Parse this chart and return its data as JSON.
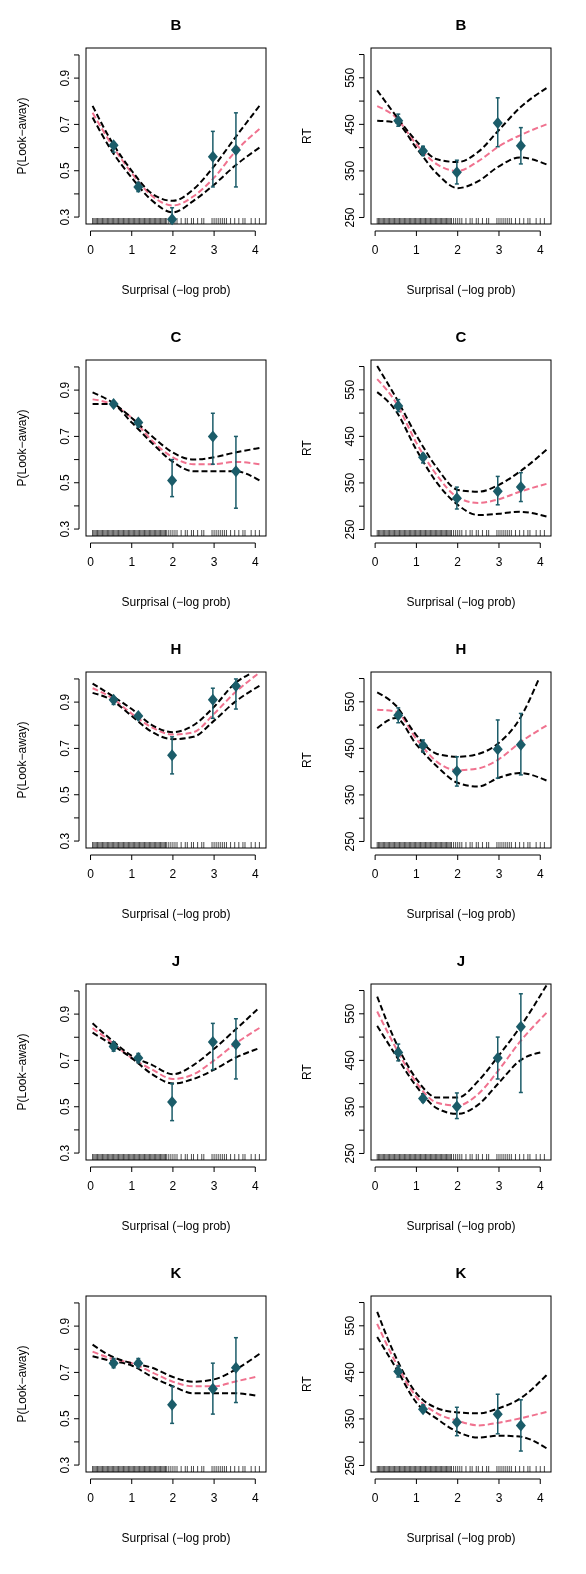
{
  "chart_data": [
    {
      "type": "line",
      "title": "B",
      "xlabel": "Surprisal (−log prob)",
      "ylabel": "P(Look−away)",
      "xlim": [
        -0.11,
        4.26
      ],
      "ylim": [
        0.27,
        1.03
      ],
      "xticks": [
        0,
        1,
        2,
        3,
        4
      ],
      "yticks": [
        0.3,
        {
          "value": 0.4,
          "label": null
        },
        0.5,
        {
          "value": 0.6,
          "label": null
        },
        0.7,
        {
          "value": 0.8,
          "label": null
        },
        0.9,
        {
          "value": 1.0,
          "label": null
        }
      ],
      "series": [
        {
          "color": "#f0728f",
          "line_style": "dashed",
          "x": [
            0.05,
            0.56,
            1,
            1.5,
            2,
            2.5,
            3,
            3.5,
            4.1
          ],
          "values": [
            0.75,
            0.6,
            0.49,
            0.39,
            0.35,
            0.39,
            0.47,
            0.58,
            0.68
          ]
        },
        {
          "color": "#000000",
          "line_style": "dashed",
          "x": [
            0.05,
            0.5,
            1,
            1.5,
            2,
            2.5,
            3,
            3.5,
            4.1
          ],
          "values": [
            0.78,
            0.63,
            0.5,
            0.4,
            0.37,
            0.42,
            0.52,
            0.64,
            0.78
          ]
        },
        {
          "color": "#000000",
          "line_style": "dashed",
          "x": [
            0.05,
            0.5,
            1,
            1.5,
            2,
            2.5,
            3,
            3.5,
            4.1
          ],
          "values": [
            0.73,
            0.59,
            0.47,
            0.37,
            0.32,
            0.37,
            0.44,
            0.52,
            0.6
          ]
        },
        {
          "type": "scatter",
          "color": "#1b5c69",
          "marker": "diamond",
          "x": [
            0.56,
            1.16,
            1.98,
            2.97,
            3.53
          ],
          "values": [
            0.61,
            0.43,
            0.29,
            0.56,
            0.59
          ],
          "errors": [
            [
              0.58,
              0.62
            ],
            [
              0.41,
              0.45
            ],
            [
              0.28,
              0.34
            ],
            [
              0.43,
              0.67
            ],
            [
              0.43,
              0.75
            ]
          ]
        }
      ]
    },
    {
      "type": "line",
      "title": "B",
      "xlabel": "Surprisal (−log prob)",
      "ylabel": "RT",
      "xlim": [
        -0.1,
        4.26
      ],
      "ylim": [
        236,
        614
      ],
      "xticks": [
        0,
        1,
        2,
        3,
        4
      ],
      "yticks": [
        250,
        {
          "value": 300,
          "label": null
        },
        350,
        {
          "value": 400,
          "label": null
        },
        450,
        {
          "value": 500,
          "label": null
        },
        550,
        {
          "value": 600,
          "label": null
        }
      ],
      "series": [
        {
          "color": "#f0728f",
          "line_style": "dashed",
          "x": [
            0.05,
            0.5,
            1,
            1.5,
            2,
            2.5,
            3,
            3.5,
            4.15
          ],
          "values": [
            489,
            465,
            407,
            364,
            350,
            371,
            403,
            426,
            450
          ]
        },
        {
          "color": "#000000",
          "line_style": "dashed",
          "x": [
            0.05,
            0.5,
            1,
            1.5,
            2,
            2.5,
            3,
            3.5,
            4.15
          ],
          "values": [
            523,
            469,
            414,
            375,
            369,
            391,
            438,
            485,
            528
          ]
        },
        {
          "color": "#000000",
          "line_style": "dashed",
          "x": [
            0.05,
            0.5,
            1,
            1.5,
            2,
            2.5,
            3,
            3.5,
            4.15
          ],
          "values": [
            458,
            454,
            399,
            344,
            313,
            328,
            360,
            379,
            364
          ]
        },
        {
          "type": "scatter",
          "color": "#1b5c69",
          "marker": "diamond",
          "x": [
            0.56,
            1.16,
            1.98,
            2.97,
            3.53
          ],
          "values": [
            458,
            393,
            347,
            453,
            404
          ],
          "errors": [
            [
              446,
              472
            ],
            [
              383,
              403
            ],
            [
              322,
              373
            ],
            [
              402,
              507
            ],
            [
              365,
              443
            ]
          ]
        }
      ]
    },
    {
      "type": "line",
      "title": "C",
      "xlabel": "Surprisal (−log prob)",
      "ylabel": "P(Look−away)",
      "xlim": [
        -0.11,
        4.26
      ],
      "ylim": [
        0.27,
        1.03
      ],
      "xticks": [
        0,
        1,
        2,
        3,
        4
      ],
      "yticks": [
        0.3,
        {
          "value": 0.4,
          "label": null
        },
        0.5,
        {
          "value": 0.6,
          "label": null
        },
        0.7,
        {
          "value": 0.8,
          "label": null
        },
        0.9,
        {
          "value": 1.0,
          "label": null
        }
      ],
      "series": [
        {
          "color": "#f0728f",
          "line_style": "dashed",
          "x": [
            0.05,
            0.5,
            1,
            1.5,
            2,
            2.5,
            3,
            3.5,
            4.1
          ],
          "values": [
            0.86,
            0.84,
            0.78,
            0.68,
            0.61,
            0.58,
            0.58,
            0.59,
            0.58
          ]
        },
        {
          "color": "#000000",
          "line_style": "dashed",
          "x": [
            0.05,
            0.5,
            1,
            1.5,
            2,
            2.5,
            3,
            3.5,
            4.1
          ],
          "values": [
            0.89,
            0.85,
            0.78,
            0.7,
            0.63,
            0.6,
            0.61,
            0.63,
            0.65
          ]
        },
        {
          "color": "#000000",
          "line_style": "dashed",
          "x": [
            0.05,
            0.5,
            1,
            1.5,
            2,
            2.5,
            3,
            3.5,
            4.1
          ],
          "values": [
            0.84,
            0.84,
            0.76,
            0.67,
            0.59,
            0.55,
            0.55,
            0.55,
            0.51
          ]
        },
        {
          "type": "scatter",
          "color": "#1b5c69",
          "marker": "diamond",
          "x": [
            0.56,
            1.16,
            1.98,
            2.97,
            3.53
          ],
          "values": [
            0.84,
            0.76,
            0.51,
            0.7,
            0.55
          ],
          "errors": [
            [
              0.83,
              0.85
            ],
            [
              0.74,
              0.77
            ],
            [
              0.44,
              0.6
            ],
            [
              0.58,
              0.8
            ],
            [
              0.39,
              0.7
            ]
          ]
        }
      ]
    },
    {
      "type": "line",
      "title": "C",
      "xlabel": "Surprisal (−log prob)",
      "ylabel": "RT",
      "xlim": [
        -0.1,
        4.26
      ],
      "ylim": [
        236,
        614
      ],
      "xticks": [
        0,
        1,
        2,
        3,
        4
      ],
      "yticks": [
        250,
        {
          "value": 300,
          "label": null
        },
        350,
        {
          "value": 400,
          "label": null
        },
        450,
        {
          "value": 500,
          "label": null
        },
        550,
        {
          "value": 600,
          "label": null
        }
      ],
      "series": [
        {
          "color": "#f0728f",
          "line_style": "dashed",
          "x": [
            0.05,
            0.5,
            1,
            1.5,
            2,
            2.5,
            3,
            3.5,
            4.15
          ],
          "values": [
            573,
            523,
            436,
            366,
            319,
            307,
            315,
            331,
            348
          ]
        },
        {
          "color": "#000000",
          "line_style": "dashed",
          "x": [
            0.05,
            0.5,
            1,
            1.5,
            2,
            2.5,
            3,
            3.5,
            4.15
          ],
          "values": [
            601,
            534,
            452,
            382,
            335,
            331,
            346,
            374,
            421
          ]
        },
        {
          "color": "#000000",
          "line_style": "dashed",
          "x": [
            0.05,
            0.5,
            1,
            1.5,
            2,
            2.5,
            3,
            3.5,
            4.15
          ],
          "values": [
            545,
            505,
            421,
            350,
            303,
            281,
            284,
            288,
            278
          ]
        },
        {
          "type": "scatter",
          "color": "#1b5c69",
          "marker": "diamond",
          "x": [
            0.56,
            1.16,
            1.98,
            2.97,
            3.53
          ],
          "values": [
            515,
            405,
            317,
            332,
            341
          ],
          "errors": [
            [
              503,
              529
            ],
            [
              393,
              413
            ],
            [
              294,
              341
            ],
            [
              303,
              364
            ],
            [
              310,
              372
            ]
          ]
        }
      ]
    },
    {
      "type": "line",
      "title": "H",
      "xlabel": "Surprisal (−log prob)",
      "ylabel": "P(Look−away)",
      "xlim": [
        -0.11,
        4.26
      ],
      "ylim": [
        0.27,
        1.03
      ],
      "xticks": [
        0,
        1,
        2,
        3,
        4
      ],
      "yticks": [
        0.3,
        {
          "value": 0.4,
          "label": null
        },
        0.5,
        {
          "value": 0.6,
          "label": null
        },
        0.7,
        {
          "value": 0.8,
          "label": null
        },
        0.9,
        {
          "value": 1.0,
          "label": null
        }
      ],
      "series": [
        {
          "color": "#f0728f",
          "line_style": "dashed",
          "x": [
            0.05,
            0.5,
            1,
            1.5,
            2,
            2.5,
            3,
            3.5,
            4.05
          ],
          "values": [
            0.96,
            0.92,
            0.85,
            0.79,
            0.76,
            0.77,
            0.85,
            0.94,
            1.02
          ]
        },
        {
          "color": "#000000",
          "line_style": "dashed",
          "x": [
            0.05,
            0.5,
            1,
            1.5,
            2,
            2.5,
            3,
            3.5,
            3.85
          ],
          "values": [
            0.98,
            0.93,
            0.87,
            0.8,
            0.77,
            0.8,
            0.88,
            0.98,
            1.02
          ]
        },
        {
          "color": "#000000",
          "line_style": "dashed",
          "x": [
            0.05,
            0.5,
            1,
            1.5,
            2,
            2.5,
            3,
            3.5,
            4.1
          ],
          "values": [
            0.94,
            0.91,
            0.84,
            0.77,
            0.74,
            0.75,
            0.82,
            0.9,
            0.97
          ]
        },
        {
          "type": "scatter",
          "color": "#1b5c69",
          "marker": "diamond",
          "x": [
            0.56,
            1.16,
            1.98,
            2.97,
            3.53
          ],
          "values": [
            0.91,
            0.84,
            0.67,
            0.91,
            0.97
          ],
          "errors": [
            [
              0.89,
              0.92
            ],
            [
              0.83,
              0.85
            ],
            [
              0.59,
              0.75
            ],
            [
              0.83,
              0.96
            ],
            [
              0.87,
              1.0
            ]
          ]
        }
      ]
    },
    {
      "type": "line",
      "title": "H",
      "xlabel": "Surprisal (−log prob)",
      "ylabel": "RT",
      "xlim": [
        -0.1,
        4.26
      ],
      "ylim": [
        236,
        614
      ],
      "xticks": [
        0,
        1,
        2,
        3,
        4
      ],
      "yticks": [
        250,
        {
          "value": 300,
          "label": null
        },
        350,
        {
          "value": 400,
          "label": null
        },
        450,
        {
          "value": 500,
          "label": null
        },
        550,
        {
          "value": 600,
          "label": null
        }
      ],
      "series": [
        {
          "color": "#f0728f",
          "line_style": "dashed",
          "x": [
            0.05,
            0.5,
            1,
            1.5,
            2,
            2.5,
            3,
            3.5,
            4.15
          ],
          "values": [
            533,
            529,
            470,
            421,
            403,
            407,
            427,
            462,
            499
          ]
        },
        {
          "color": "#000000",
          "line_style": "dashed",
          "x": [
            0.05,
            0.5,
            1,
            1.5,
            2,
            2.5,
            3,
            3.5,
            3.95
          ],
          "values": [
            570,
            542,
            478,
            438,
            432,
            438,
            462,
            513,
            596
          ]
        },
        {
          "color": "#000000",
          "line_style": "dashed",
          "x": [
            0.05,
            0.5,
            1,
            1.5,
            2,
            2.5,
            3,
            3.5,
            4.15
          ],
          "values": [
            493,
            515,
            458,
            411,
            376,
            368,
            387,
            397,
            381
          ]
        },
        {
          "type": "scatter",
          "color": "#1b5c69",
          "marker": "diamond",
          "x": [
            0.56,
            1.16,
            1.98,
            2.97,
            3.53
          ],
          "values": [
            521,
            456,
            401,
            448,
            458
          ],
          "errors": [
            [
              505,
              537
            ],
            [
              442,
              468
            ],
            [
              369,
              432
            ],
            [
              386,
              511
            ],
            [
              393,
              525
            ]
          ]
        }
      ]
    },
    {
      "type": "line",
      "title": "J",
      "xlabel": "Surprisal (−log prob)",
      "ylabel": "P(Look−away)",
      "xlim": [
        -0.11,
        4.26
      ],
      "ylim": [
        0.27,
        1.03
      ],
      "xticks": [
        0,
        1,
        2,
        3,
        4
      ],
      "yticks": [
        0.3,
        {
          "value": 0.4,
          "label": null
        },
        0.5,
        {
          "value": 0.6,
          "label": null
        },
        0.7,
        {
          "value": 0.8,
          "label": null
        },
        0.9,
        {
          "value": 1.0,
          "label": null
        }
      ],
      "series": [
        {
          "color": "#f0728f",
          "line_style": "dashed",
          "x": [
            0.05,
            0.5,
            1,
            1.5,
            2,
            2.5,
            3,
            3.5,
            4.1
          ],
          "values": [
            0.84,
            0.78,
            0.71,
            0.66,
            0.62,
            0.64,
            0.7,
            0.77,
            0.84
          ]
        },
        {
          "color": "#000000",
          "line_style": "dashed",
          "x": [
            0.05,
            0.5,
            1,
            1.5,
            2,
            2.5,
            3,
            3.5,
            4.05
          ],
          "values": [
            0.86,
            0.79,
            0.72,
            0.68,
            0.64,
            0.68,
            0.75,
            0.83,
            0.92
          ]
        },
        {
          "color": "#000000",
          "line_style": "dashed",
          "x": [
            0.05,
            0.5,
            1,
            1.5,
            2,
            2.5,
            3,
            3.5,
            4.05
          ],
          "values": [
            0.82,
            0.77,
            0.71,
            0.64,
            0.6,
            0.62,
            0.66,
            0.71,
            0.75
          ]
        },
        {
          "type": "scatter",
          "color": "#1b5c69",
          "marker": "diamond",
          "x": [
            0.56,
            1.16,
            1.98,
            2.97,
            3.53
          ],
          "values": [
            0.76,
            0.71,
            0.52,
            0.78,
            0.77
          ],
          "errors": [
            [
              0.74,
              0.78
            ],
            [
              0.69,
              0.73
            ],
            [
              0.44,
              0.6
            ],
            [
              0.66,
              0.86
            ],
            [
              0.62,
              0.88
            ]
          ]
        }
      ]
    },
    {
      "type": "line",
      "title": "J",
      "xlabel": "Surprisal (−log prob)",
      "ylabel": "RT",
      "xlim": [
        -0.1,
        4.26
      ],
      "ylim": [
        236,
        614
      ],
      "xticks": [
        0,
        1,
        2,
        3,
        4
      ],
      "yticks": [
        250,
        {
          "value": 300,
          "label": null
        },
        350,
        {
          "value": 400,
          "label": null
        },
        450,
        {
          "value": 500,
          "label": null
        },
        550,
        {
          "value": 600,
          "label": null
        }
      ],
      "series": [
        {
          "color": "#f0728f",
          "line_style": "dashed",
          "x": [
            0.05,
            0.5,
            1,
            1.5,
            2,
            2.5,
            3,
            3.5,
            4.15
          ],
          "values": [
            555,
            477,
            402,
            359,
            353,
            378,
            430,
            489,
            552
          ]
        },
        {
          "color": "#000000",
          "line_style": "dashed",
          "x": [
            0.05,
            0.5,
            1,
            1.5,
            2,
            2.5,
            3,
            3.5,
            4.15
          ],
          "values": [
            587,
            489,
            410,
            370,
            370,
            406,
            461,
            520,
            611
          ]
        },
        {
          "color": "#000000",
          "line_style": "dashed",
          "x": [
            0.05,
            0.5,
            1,
            1.5,
            2,
            2.5,
            3,
            3.5,
            4.0
          ],
          "values": [
            524,
            461,
            394,
            347,
            335,
            355,
            402,
            449,
            467
          ]
        },
        {
          "type": "scatter",
          "color": "#1b5c69",
          "marker": "diamond",
          "x": [
            0.56,
            1.16,
            1.98,
            2.97,
            3.53
          ],
          "values": [
            467,
            368,
            351,
            455,
            522
          ],
          "errors": [
            [
              449,
              485
            ],
            [
              361,
              374
            ],
            [
              325,
              380
            ],
            [
              410,
              500
            ],
            [
              381,
              593
            ]
          ]
        }
      ]
    },
    {
      "type": "line",
      "title": "K",
      "xlabel": "Surprisal (−log prob)",
      "ylabel": "P(Look−away)",
      "xlim": [
        -0.11,
        4.26
      ],
      "ylim": [
        0.27,
        1.03
      ],
      "xticks": [
        0,
        1,
        2,
        3,
        4
      ],
      "yticks": [
        0.3,
        {
          "value": 0.4,
          "label": null
        },
        0.5,
        {
          "value": 0.6,
          "label": null
        },
        0.7,
        {
          "value": 0.8,
          "label": null
        },
        0.9,
        {
          "value": 1.0,
          "label": null
        }
      ],
      "series": [
        {
          "color": "#f0728f",
          "line_style": "dashed",
          "x": [
            0.05,
            0.5,
            1,
            1.5,
            2,
            2.5,
            3,
            3.5,
            4.0
          ],
          "values": [
            0.79,
            0.76,
            0.74,
            0.7,
            0.66,
            0.64,
            0.64,
            0.66,
            0.68
          ]
        },
        {
          "color": "#000000",
          "line_style": "dashed",
          "x": [
            0.05,
            0.5,
            1,
            1.5,
            2,
            2.5,
            3,
            3.5,
            4.1
          ],
          "values": [
            0.82,
            0.77,
            0.74,
            0.72,
            0.68,
            0.66,
            0.67,
            0.71,
            0.78
          ]
        },
        {
          "color": "#000000",
          "line_style": "dashed",
          "x": [
            0.05,
            0.5,
            1,
            1.5,
            2,
            2.5,
            3,
            3.5,
            4.0
          ],
          "values": [
            0.77,
            0.75,
            0.73,
            0.68,
            0.64,
            0.61,
            0.61,
            0.61,
            0.6
          ]
        },
        {
          "type": "scatter",
          "color": "#1b5c69",
          "marker": "diamond",
          "x": [
            0.56,
            1.16,
            1.98,
            2.97,
            3.53
          ],
          "values": [
            0.74,
            0.74,
            0.56,
            0.63,
            0.72
          ],
          "errors": [
            [
              0.72,
              0.76
            ],
            [
              0.73,
              0.76
            ],
            [
              0.48,
              0.64
            ],
            [
              0.52,
              0.74
            ],
            [
              0.57,
              0.85
            ]
          ]
        }
      ]
    },
    {
      "type": "line",
      "title": "K",
      "xlabel": "Surprisal (−log prob)",
      "ylabel": "RT",
      "xlim": [
        -0.1,
        4.26
      ],
      "ylim": [
        236,
        614
      ],
      "xticks": [
        0,
        1,
        2,
        3,
        4
      ],
      "yticks": [
        250,
        {
          "value": 300,
          "label": null
        },
        350,
        {
          "value": 400,
          "label": null
        },
        450,
        {
          "value": 500,
          "label": null
        },
        550,
        {
          "value": 600,
          "label": null
        }
      ],
      "series": [
        {
          "color": "#f0728f",
          "line_style": "dashed",
          "x": [
            0.05,
            0.5,
            1,
            1.5,
            2,
            2.5,
            3,
            3.5,
            4.15
          ],
          "values": [
            554,
            471,
            397,
            362,
            346,
            336,
            342,
            351,
            365
          ]
        },
        {
          "color": "#000000",
          "line_style": "dashed",
          "x": [
            0.05,
            0.5,
            1,
            1.5,
            2,
            2.5,
            3,
            3.5,
            4.15
          ],
          "values": [
            580,
            483,
            405,
            373,
            364,
            362,
            373,
            393,
            444
          ]
        },
        {
          "color": "#000000",
          "line_style": "dashed",
          "x": [
            0.05,
            0.5,
            1,
            1.5,
            2,
            2.5,
            3,
            3.5,
            4.15
          ],
          "values": [
            526,
            460,
            385,
            350,
            322,
            310,
            314,
            312,
            287
          ]
        },
        {
          "type": "scatter",
          "color": "#1b5c69",
          "marker": "diamond",
          "x": [
            0.56,
            1.16,
            1.98,
            2.97,
            3.53
          ],
          "values": [
            452,
            371,
            343,
            360,
            336
          ],
          "errors": [
            [
              440,
              464
            ],
            [
              365,
              380
            ],
            [
              314,
              375
            ],
            [
              318,
              403
            ],
            [
              281,
              391
            ]
          ]
        }
      ]
    }
  ]
}
